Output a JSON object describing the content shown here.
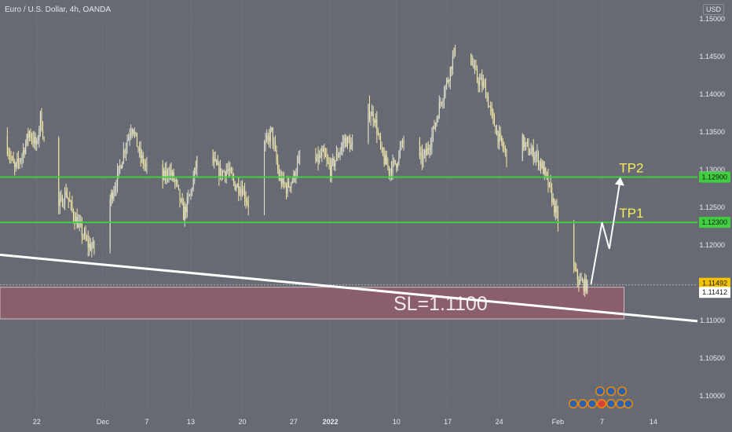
{
  "header": {
    "symbol_text": "Euro / U.S. Dollar, 4h, OANDA",
    "currency": "USD"
  },
  "colors": {
    "background": "#676a72",
    "bull": "#e0e2d2",
    "bear": "#f2e6a4",
    "level": "#3fcf3f",
    "level_text": "#f4ec5a",
    "sl_zone": "#8e5d6b",
    "trendline": "#ffffff",
    "axis_text": "#e8e9ec",
    "price_tag": "#f3c200"
  },
  "chart_data": {
    "type": "candlestick",
    "instrument": "Euro / U.S. Dollar",
    "timeframe": "4h",
    "source": "OANDA",
    "y_ticks": [
      "1.15000",
      "1.14500",
      "1.14000",
      "1.13500",
      "1.13000",
      "1.12500",
      "1.12000",
      "1.11500",
      "1.11000",
      "1.10500",
      "1.10000"
    ],
    "y_tick_values": [
      1.15,
      1.145,
      1.14,
      1.135,
      1.13,
      1.125,
      1.12,
      1.115,
      1.11,
      1.105,
      1.1
    ],
    "ylim": [
      1.0978,
      1.1525
    ],
    "x_ticks": [
      "22",
      "Dec",
      "7",
      "13",
      "20",
      "27",
      "2022",
      "10",
      "17",
      "24",
      "Feb",
      "7",
      "14"
    ],
    "x_tick_days": [
      0,
      9,
      15,
      21,
      28,
      35,
      40,
      49,
      56,
      63,
      71,
      77,
      84
    ],
    "xlim": [
      -5,
      90
    ],
    "price_path": [
      [
        -5,
        1.1345
      ],
      [
        -4,
        1.133
      ],
      [
        -3,
        1.13
      ],
      [
        -2,
        1.132
      ],
      [
        -1,
        1.135
      ],
      [
        0,
        1.133
      ],
      [
        0.5,
        1.137
      ],
      [
        1,
        1.134
      ],
      [
        2,
        1.128
      ],
      [
        3,
        1.125
      ],
      [
        4,
        1.127
      ],
      [
        5,
        1.124
      ],
      [
        6,
        1.122
      ],
      [
        7,
        1.12
      ],
      [
        8,
        1.1195
      ],
      [
        9,
        1.1215
      ],
      [
        10,
        1.126
      ],
      [
        11,
        1.129
      ],
      [
        12,
        1.133
      ],
      [
        13,
        1.136
      ],
      [
        14,
        1.132
      ],
      [
        15,
        1.13
      ],
      [
        16,
        1.129
      ],
      [
        17,
        1.1285
      ],
      [
        18,
        1.13
      ],
      [
        19,
        1.128
      ],
      [
        20,
        1.124
      ],
      [
        21,
        1.127
      ],
      [
        22,
        1.132
      ],
      [
        23,
        1.134
      ],
      [
        24,
        1.131
      ],
      [
        25,
        1.1295
      ],
      [
        26,
        1.13
      ],
      [
        27,
        1.128
      ],
      [
        28,
        1.1275
      ],
      [
        29,
        1.125
      ],
      [
        30,
        1.13
      ],
      [
        31,
        1.133
      ],
      [
        32,
        1.135
      ],
      [
        33,
        1.129
      ],
      [
        34,
        1.1275
      ],
      [
        35,
        1.129
      ],
      [
        36,
        1.132
      ],
      [
        37,
        1.13
      ],
      [
        38,
        1.131
      ],
      [
        39,
        1.132
      ],
      [
        40,
        1.13
      ],
      [
        41,
        1.132
      ],
      [
        42,
        1.134
      ],
      [
        43,
        1.133
      ],
      [
        44,
        1.131
      ],
      [
        45,
        1.138
      ],
      [
        46,
        1.137
      ],
      [
        47,
        1.132
      ],
      [
        48,
        1.13
      ],
      [
        49,
        1.131
      ],
      [
        50,
        1.134
      ],
      [
        51,
        1.133
      ],
      [
        52,
        1.131
      ],
      [
        53,
        1.132
      ],
      [
        54,
        1.135
      ],
      [
        55,
        1.139
      ],
      [
        56,
        1.142
      ],
      [
        57,
        1.146
      ],
      [
        58,
        1.148
      ],
      [
        59,
        1.145
      ],
      [
        60,
        1.142
      ],
      [
        61,
        1.141
      ],
      [
        62,
        1.137
      ],
      [
        63,
        1.134
      ],
      [
        64,
        1.132
      ],
      [
        65,
        1.136
      ],
      [
        66,
        1.134
      ],
      [
        67,
        1.1325
      ],
      [
        68,
        1.132
      ],
      [
        69,
        1.13
      ],
      [
        70,
        1.127
      ],
      [
        71,
        1.123
      ],
      [
        72,
        1.12
      ],
      [
        73,
        1.117
      ],
      [
        74,
        1.115
      ],
      [
        75,
        1.1145
      ]
    ],
    "horizontal_levels": [
      {
        "label": "TP2",
        "price": 1.129,
        "tag": "1.12900"
      },
      {
        "label": "TP1",
        "price": 1.123,
        "tag": "1.12300"
      }
    ],
    "current_price": {
      "price": 1.11492,
      "tag": "1.11492"
    },
    "bid_price": {
      "price": 1.11412,
      "tag": "1.11412"
    },
    "stop_loss_zone": {
      "label": "SL=1.1100",
      "top": 1.1144,
      "bottom": 1.1102,
      "x_end": 80
    },
    "trendline": [
      [
        -5,
        1.1187
      ],
      [
        90,
        1.1099
      ]
    ],
    "projection_path": [
      [
        75.5,
        1.1148
      ],
      [
        77,
        1.123
      ],
      [
        78,
        1.1195
      ],
      [
        79.5,
        1.1288
      ]
    ]
  }
}
